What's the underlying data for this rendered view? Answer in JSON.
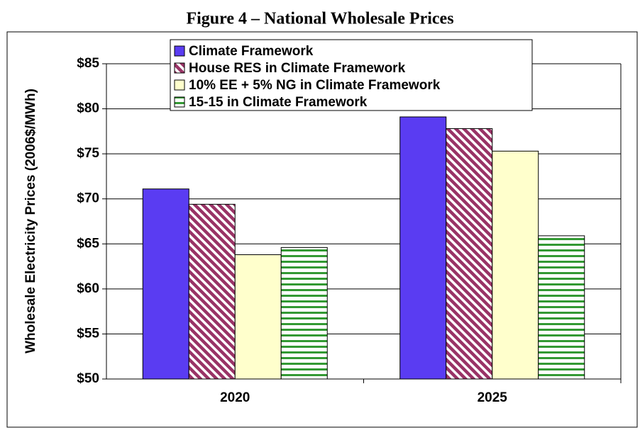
{
  "chart_data": {
    "type": "bar",
    "title": "Figure 4 – National Wholesale Prices",
    "y_label": "Wholesale Electricity Prices (2006$/MWh)",
    "categories": [
      "2020",
      "2025"
    ],
    "series": [
      {
        "name": "Climate Framework",
        "color": "#5a3cf2",
        "pattern": "solid",
        "values": [
          71.1,
          79.1
        ]
      },
      {
        "name": "House RES in Climate Framework",
        "color": "#993366",
        "pattern": "diagonal",
        "values": [
          69.4,
          77.8
        ]
      },
      {
        "name": "10% EE + 5% NG in Climate Framework",
        "color": "#ffffcc",
        "pattern": "solid",
        "values": [
          63.8,
          75.3
        ]
      },
      {
        "name": "15-15 in Climate Framework",
        "color": "#339933",
        "pattern": "horizontal",
        "values": [
          64.6,
          65.9
        ]
      }
    ],
    "ylim": [
      50,
      85
    ],
    "yticks": [
      {
        "value": 50,
        "label": "$50"
      },
      {
        "value": 55,
        "label": "$55"
      },
      {
        "value": 60,
        "label": "$60"
      },
      {
        "value": 65,
        "label": "$65"
      },
      {
        "value": 70,
        "label": "$70"
      },
      {
        "value": 75,
        "label": "$75"
      },
      {
        "value": 80,
        "label": "$80"
      },
      {
        "value": 85,
        "label": "$85"
      }
    ],
    "grid": true,
    "legend": "top"
  }
}
